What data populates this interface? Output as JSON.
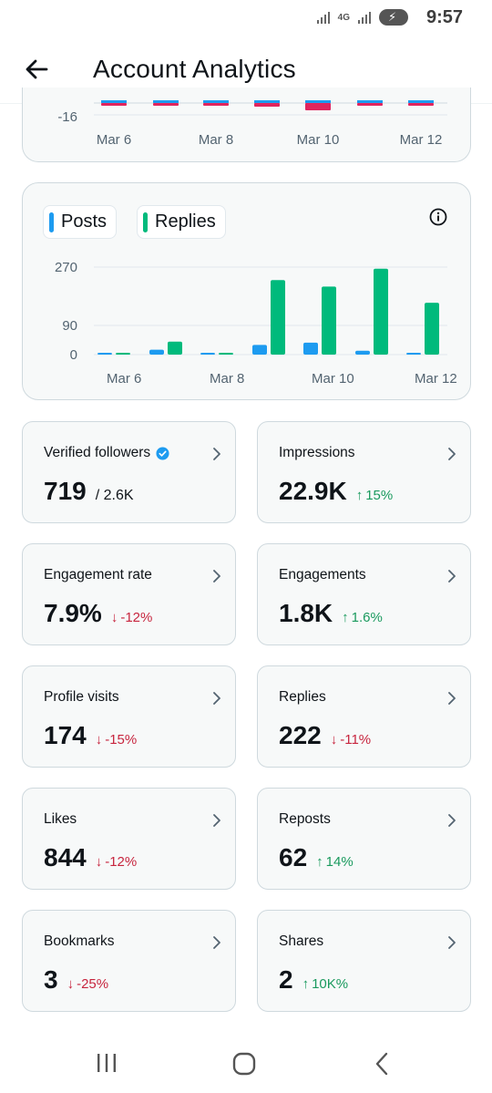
{
  "status": {
    "time": "9:57",
    "network": "4G"
  },
  "header": {
    "title": "Account Analytics"
  },
  "chart_top": {
    "ytick": "-16",
    "xticks": [
      "Mar 6",
      "Mar 8",
      "Mar 10",
      "Mar 12"
    ]
  },
  "legend": {
    "posts": "Posts",
    "replies": "Replies"
  },
  "colors": {
    "posts": "#1d9bf0",
    "replies": "#00ba7c",
    "negative": "#e0245e",
    "up": "#1a9a5e",
    "down": "#c7253e",
    "verified": "#1d9bf0"
  },
  "chart_data": [
    {
      "type": "bar",
      "categories": [
        "Mar 6",
        "Mar 7",
        "Mar 8",
        "Mar 9",
        "Mar 10",
        "Mar 11",
        "Mar 12"
      ],
      "yticks": [
        "-16"
      ],
      "series": [
        {
          "values": [
            -2,
            -2,
            -1,
            -4,
            -8,
            -3,
            -3
          ]
        }
      ]
    },
    {
      "type": "bar",
      "categories": [
        "Mar 6",
        "Mar 7",
        "Mar 8",
        "Mar 9",
        "Mar 10",
        "Mar 11",
        "Mar 12"
      ],
      "xticks": [
        "Mar 6",
        "Mar 8",
        "Mar 10",
        "Mar 12"
      ],
      "yticks": [
        0,
        90,
        270
      ],
      "ylim": [
        0,
        270
      ],
      "legend": "top-left",
      "series": [
        {
          "name": "Posts",
          "values": [
            2,
            15,
            1,
            30,
            37,
            12,
            2
          ]
        },
        {
          "name": "Replies",
          "values": [
            5,
            40,
            1,
            230,
            210,
            265,
            160
          ]
        }
      ]
    }
  ],
  "stats": [
    {
      "label": "Verified followers",
      "value": "719",
      "sub": "/ 2.6K",
      "delta": "",
      "dir": "",
      "verified": true
    },
    {
      "label": "Impressions",
      "value": "22.9K",
      "sub": "",
      "delta": "15%",
      "dir": "up"
    },
    {
      "label": "Engagement rate",
      "value": "7.9%",
      "sub": "",
      "delta": "-12%",
      "dir": "down"
    },
    {
      "label": "Engagements",
      "value": "1.8K",
      "sub": "",
      "delta": "1.6%",
      "dir": "up"
    },
    {
      "label": "Profile visits",
      "value": "174",
      "sub": "",
      "delta": "-15%",
      "dir": "down"
    },
    {
      "label": "Replies",
      "value": "222",
      "sub": "",
      "delta": "-11%",
      "dir": "down"
    },
    {
      "label": "Likes",
      "value": "844",
      "sub": "",
      "delta": "-12%",
      "dir": "down"
    },
    {
      "label": "Reposts",
      "value": "62",
      "sub": "",
      "delta": "14%",
      "dir": "up"
    },
    {
      "label": "Bookmarks",
      "value": "3",
      "sub": "",
      "delta": "-25%",
      "dir": "down"
    },
    {
      "label": "Shares",
      "value": "2",
      "sub": "",
      "delta": "10K%",
      "dir": "up"
    }
  ]
}
